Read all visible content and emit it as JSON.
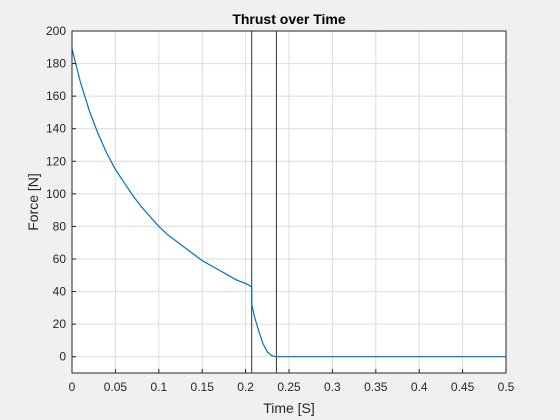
{
  "chart_data": {
    "type": "line",
    "title": "Thrust over Time",
    "xlabel": "Time [S]",
    "ylabel": "Force [N]",
    "xlim": [
      0,
      0.5
    ],
    "ylim": [
      -10,
      200
    ],
    "grid": true,
    "xticks": [
      0,
      0.05,
      0.1,
      0.15,
      0.2,
      0.25,
      0.3,
      0.35,
      0.4,
      0.45,
      0.5
    ],
    "xtick_labels": [
      "0",
      "0.05",
      "0.1",
      "0.15",
      "0.2",
      "0.25",
      "0.3",
      "0.35",
      "0.4",
      "0.45",
      "0.5"
    ],
    "yticks": [
      0,
      20,
      40,
      60,
      80,
      100,
      120,
      140,
      160,
      180,
      200
    ],
    "ytick_labels": [
      "0",
      "20",
      "40",
      "60",
      "80",
      "100",
      "120",
      "140",
      "160",
      "180",
      "200"
    ],
    "series": [
      {
        "color": "#0072bd",
        "x": [
          0,
          0.01,
          0.02,
          0.03,
          0.04,
          0.05,
          0.06,
          0.07,
          0.08,
          0.09,
          0.1,
          0.11,
          0.12,
          0.13,
          0.14,
          0.15,
          0.16,
          0.17,
          0.18,
          0.19,
          0.2,
          0.207,
          0.2071,
          0.21,
          0.215,
          0.22,
          0.225,
          0.23,
          0.235,
          0.24,
          0.3,
          0.4,
          0.5
        ],
        "y": [
          189,
          168,
          151,
          137,
          125,
          115,
          107,
          99,
          92,
          86,
          80,
          75,
          71,
          67,
          63,
          59,
          56,
          53,
          50,
          47,
          45,
          43,
          32,
          25,
          16,
          8,
          3,
          0.7,
          0,
          0,
          0,
          0,
          0
        ]
      }
    ],
    "vlines": [
      0.207,
      0.2355
    ],
    "vline_color": "#333333"
  }
}
